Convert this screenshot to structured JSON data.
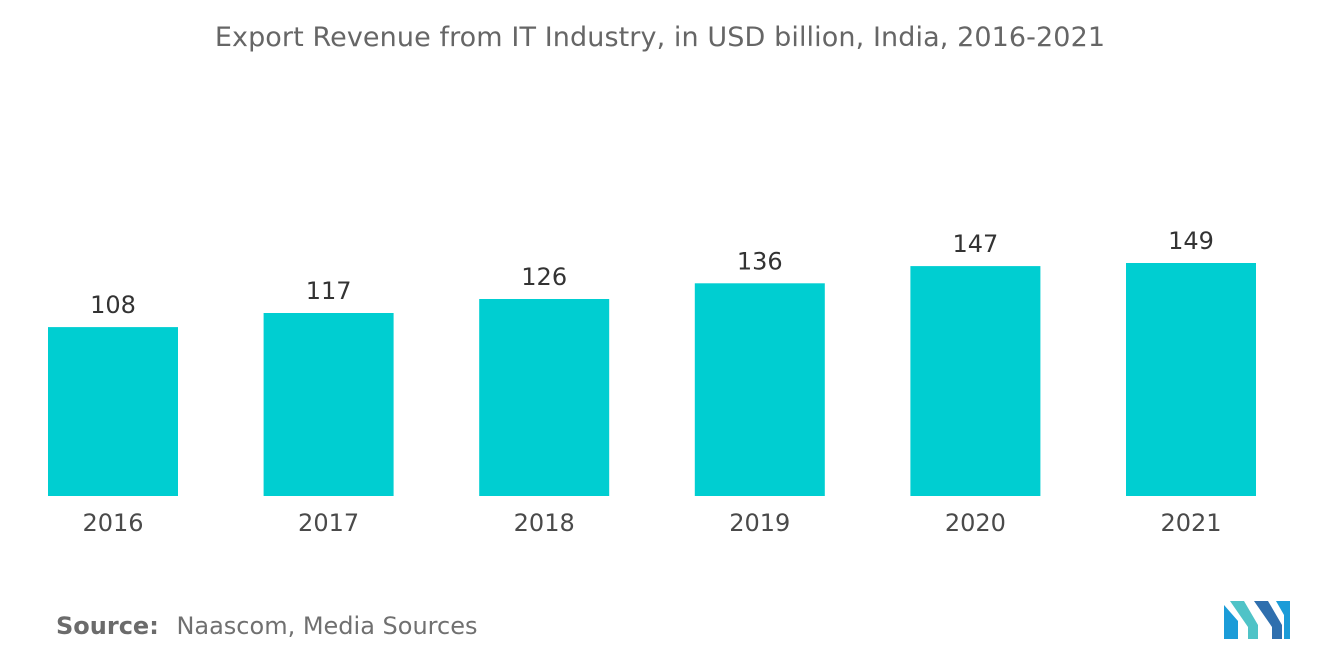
{
  "chart_data": {
    "type": "bar",
    "title": "Export Revenue from IT Industry, in USD billion, India, 2016-2021",
    "categories": [
      "2016",
      "2017",
      "2018",
      "2019",
      "2020",
      "2021"
    ],
    "values": [
      108,
      117,
      126,
      136,
      147,
      149
    ],
    "xlabel": "",
    "ylabel": "",
    "ylim": [
      0,
      149
    ],
    "grid": false,
    "legend": "none",
    "bar_color": "#00ced1"
  },
  "source": {
    "label": "Source:",
    "text": "Naascom, Media Sources"
  },
  "logo": {
    "icon": "mordor-intelligence-logo-icon",
    "colors": [
      "#1b9cd8",
      "#4fc3c7",
      "#2f6fae"
    ]
  }
}
